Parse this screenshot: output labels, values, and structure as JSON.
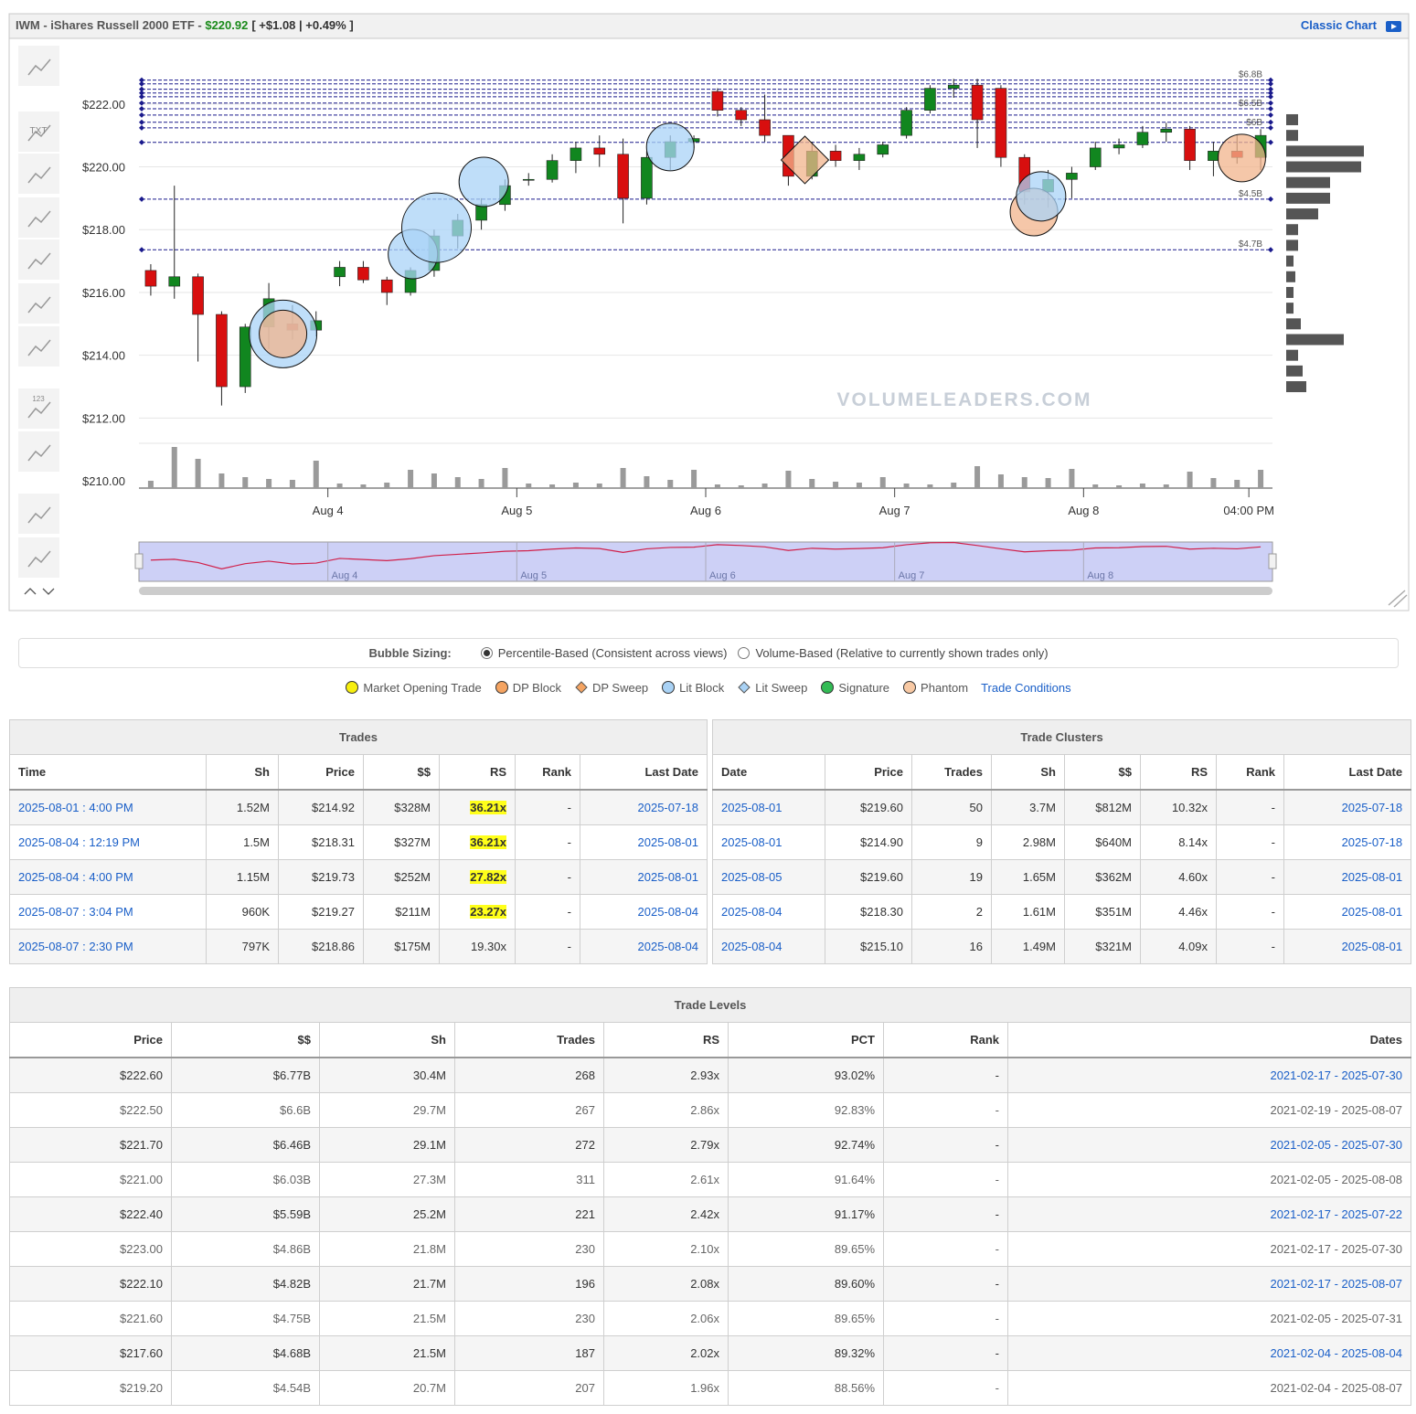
{
  "header": {
    "symbol": "IWM - iShares Russell 2000 ETF - ",
    "price": "$220.92",
    "change": "[ +$1.08 | +0.49% ]",
    "classic_chart": "Classic Chart"
  },
  "toolbar": {
    "labels": [
      "TXT",
      "123"
    ]
  },
  "chart_data": {
    "type": "candlestick",
    "watermark": "VOLUMELEADERS.COM",
    "x": [
      0,
      1,
      2,
      3,
      4,
      5,
      6,
      7,
      8,
      9,
      10,
      11,
      12,
      13,
      14,
      15,
      16,
      17,
      18,
      19,
      20,
      21,
      22,
      23,
      24,
      25,
      26,
      27,
      28,
      29,
      30,
      31,
      32,
      33,
      34,
      35,
      36,
      37,
      38,
      39,
      40,
      41,
      42,
      43,
      44,
      45,
      46,
      47
    ],
    "open": [
      216.7,
      216.2,
      216.5,
      215.3,
      213.0,
      214.9,
      215.0,
      214.8,
      216.5,
      216.8,
      216.4,
      216.0,
      216.7,
      217.8,
      218.3,
      218.8,
      219.6,
      219.6,
      220.2,
      220.6,
      220.4,
      219.0,
      220.3,
      220.8,
      222.4,
      221.8,
      221.5,
      221.0,
      219.7,
      220.5,
      220.2,
      220.4,
      221.0,
      221.8,
      222.5,
      222.6,
      222.5,
      220.3,
      219.2,
      219.6,
      220.0,
      220.6,
      220.7,
      221.1,
      221.2,
      220.2,
      220.5,
      220.3
    ],
    "high": [
      216.9,
      219.4,
      216.6,
      215.4,
      215.0,
      216.3,
      215.6,
      215.4,
      217.0,
      217.0,
      216.5,
      216.8,
      218.0,
      218.5,
      219.0,
      219.6,
      219.8,
      220.4,
      220.8,
      221.0,
      220.9,
      220.5,
      221.0,
      221.0,
      222.5,
      221.9,
      222.3,
      221.0,
      220.8,
      220.7,
      220.6,
      220.8,
      221.9,
      222.6,
      222.8,
      222.8,
      222.6,
      220.4,
      219.9,
      220.0,
      220.8,
      220.9,
      221.3,
      221.4,
      221.3,
      220.8,
      221.0,
      221.2
    ],
    "low": [
      215.9,
      215.8,
      213.8,
      212.4,
      212.8,
      214.2,
      214.5,
      214.6,
      216.2,
      216.3,
      215.6,
      215.9,
      216.5,
      217.4,
      218.0,
      218.6,
      219.4,
      219.5,
      219.8,
      220.0,
      218.2,
      218.8,
      219.9,
      220.6,
      221.6,
      221.3,
      220.8,
      219.4,
      219.6,
      220.0,
      219.9,
      220.3,
      220.9,
      221.7,
      222.2,
      220.6,
      220.0,
      218.8,
      218.7,
      219.0,
      219.9,
      220.4,
      220.6,
      220.8,
      219.9,
      219.7,
      220.1,
      219.9
    ],
    "close": [
      216.2,
      216.5,
      215.3,
      213.0,
      214.9,
      215.8,
      214.8,
      215.1,
      216.8,
      216.4,
      216.0,
      216.7,
      217.8,
      218.3,
      218.8,
      219.4,
      219.6,
      220.2,
      220.6,
      220.4,
      219.0,
      220.3,
      220.8,
      220.9,
      221.8,
      221.5,
      221.0,
      219.7,
      220.5,
      220.2,
      220.4,
      220.7,
      221.8,
      222.5,
      222.6,
      221.5,
      220.3,
      219.2,
      219.6,
      219.8,
      220.6,
      220.7,
      221.1,
      221.2,
      220.2,
      220.5,
      220.3,
      221.0
    ],
    "up_color": "#11861f",
    "down_color": "#d80f0f",
    "volume": [
      0.8,
      4.5,
      3.2,
      1.6,
      1.2,
      1.0,
      0.9,
      3.0,
      0.5,
      0.4,
      0.6,
      2.0,
      1.6,
      1.2,
      1.0,
      2.2,
      0.5,
      0.4,
      0.6,
      0.5,
      2.2,
      1.3,
      0.9,
      2.0,
      0.4,
      0.3,
      0.5,
      1.9,
      1.0,
      0.7,
      0.6,
      1.2,
      0.5,
      0.4,
      0.6,
      2.4,
      1.5,
      1.2,
      1.1,
      2.1,
      0.4,
      0.3,
      0.5,
      0.4,
      1.8,
      1.1,
      0.9,
      2.0
    ],
    "volume_color": "#9a9a9a",
    "ylim": [
      209.8,
      223.1
    ],
    "yticks": [
      {
        "value": 210,
        "label": "$210.00"
      },
      {
        "value": 212,
        "label": "$212.00"
      },
      {
        "value": 214,
        "label": "$214.00"
      },
      {
        "value": 216,
        "label": "$216.00"
      },
      {
        "value": 218,
        "label": "$218.00"
      },
      {
        "value": 220,
        "label": "$220.00"
      },
      {
        "value": 222,
        "label": "$222.00"
      }
    ],
    "xlim": [
      -0.5,
      47.5
    ],
    "xticks": [
      {
        "value": 7.5,
        "label": "Aug 4"
      },
      {
        "value": 15.5,
        "label": "Aug 5"
      },
      {
        "value": 23.5,
        "label": "Aug 6"
      },
      {
        "value": 31.5,
        "label": "Aug 7"
      },
      {
        "value": 39.5,
        "label": "Aug 8"
      },
      {
        "value": 46.5,
        "label": "04:00 PM"
      }
    ],
    "grid": true,
    "levels": [
      222.76,
      222.64,
      222.47,
      222.35,
      222.23,
      222.03,
      221.85,
      221.65,
      221.42,
      221.24,
      220.78,
      218.97,
      217.36
    ],
    "level_color": "#1a1a8c",
    "level_labels": [
      {
        "price": 222.76,
        "label": "$6.8B"
      },
      {
        "price": 221.85,
        "label": "$6.5B"
      },
      {
        "price": 221.24,
        "label": "$6B"
      },
      {
        "price": 218.97,
        "label": "$4.5B"
      },
      {
        "price": 217.36,
        "label": "$4.7B"
      }
    ],
    "bubbles": [
      {
        "x": 5.6,
        "y": 214.68,
        "size": 37,
        "color": "#aad3f7",
        "shape": "circle"
      },
      {
        "x": 5.6,
        "y": 214.68,
        "size": 26,
        "color": "#f2b48c",
        "shape": "circle"
      },
      {
        "x": 11.1,
        "y": 217.22,
        "size": 27,
        "color": "#aad3f7",
        "shape": "circle"
      },
      {
        "x": 12.1,
        "y": 218.06,
        "size": 38,
        "color": "#aad3f7",
        "shape": "circle"
      },
      {
        "x": 14.1,
        "y": 219.52,
        "size": 27,
        "color": "#aad3f7",
        "shape": "circle"
      },
      {
        "x": 22.0,
        "y": 220.63,
        "size": 26,
        "color": "#aad3f7",
        "shape": "circle"
      },
      {
        "x": 27.7,
        "y": 220.22,
        "size": 26,
        "color": "#f2b48c",
        "shape": "diamond"
      },
      {
        "x": 37.4,
        "y": 218.56,
        "size": 26,
        "color": "#f2b48c",
        "shape": "circle"
      },
      {
        "x": 37.7,
        "y": 219.06,
        "size": 27,
        "color": "#aad3f7",
        "shape": "circle"
      },
      {
        "x": 46.2,
        "y": 220.28,
        "size": 26,
        "color": "#f2b48c",
        "shape": "circle"
      }
    ],
    "volume_profile": {
      "prices": [
        221.5,
        221.0,
        220.5,
        220.0,
        219.5,
        219.0,
        218.5,
        218.0,
        217.5,
        217.0,
        216.5,
        216.0,
        215.5,
        215.0,
        214.5,
        214.0,
        213.5,
        213.0
      ],
      "values": [
        13,
        13,
        85,
        82,
        48,
        48,
        35,
        13,
        13,
        8,
        10,
        8,
        8,
        16,
        63,
        13,
        18,
        22
      ],
      "color": "#555555"
    }
  },
  "controls": {
    "label": "Bubble Sizing:",
    "options": [
      "Percentile-Based (Consistent across views)",
      "Volume-Based (Relative to currently shown trades only)"
    ],
    "selected": 0
  },
  "legend": {
    "items": [
      {
        "label": "Market Opening Trade",
        "color": "#f7ef0f",
        "shape": "circle"
      },
      {
        "label": "DP Block",
        "color": "#f5a462",
        "shape": "circle"
      },
      {
        "label": "DP Sweep",
        "color": "#f5a462",
        "shape": "diamond"
      },
      {
        "label": "Lit Block",
        "color": "#a9d2f5",
        "shape": "circle"
      },
      {
        "label": "Lit Sweep",
        "color": "#a9d2f5",
        "shape": "diamond"
      },
      {
        "label": "Signature",
        "color": "#33bb55",
        "shape": "circle"
      },
      {
        "label": "Phantom",
        "color": "#f8c9a4",
        "shape": "circle"
      }
    ],
    "link": "Trade Conditions"
  },
  "trades": {
    "title": "Trades",
    "columns": [
      "Time",
      "Sh",
      "Price",
      "$$",
      "RS",
      "Rank",
      "Last Date"
    ],
    "rows": [
      [
        "2025-08-01 : 4:00 PM",
        "1.52M",
        "$214.92",
        "$328M",
        "36.21x",
        "-",
        "2025-07-18"
      ],
      [
        "2025-08-04 : 12:19 PM",
        "1.5M",
        "$218.31",
        "$327M",
        "36.21x",
        "-",
        "2025-08-01"
      ],
      [
        "2025-08-04 : 4:00 PM",
        "1.15M",
        "$219.73",
        "$252M",
        "27.82x",
        "-",
        "2025-08-01"
      ],
      [
        "2025-08-07 : 3:04 PM",
        "960K",
        "$219.27",
        "$211M",
        "23.27x",
        "-",
        "2025-08-04"
      ],
      [
        "2025-08-07 : 2:30 PM",
        "797K",
        "$218.86",
        "$175M",
        "19.30x",
        "-",
        "2025-08-04"
      ]
    ],
    "link_columns": [
      0,
      6
    ],
    "highlight_rows": [
      0,
      1,
      2,
      3
    ],
    "highlight_column": 4
  },
  "clusters": {
    "title": "Trade Clusters",
    "columns": [
      "Date",
      "Price",
      "Trades",
      "Sh",
      "$$",
      "RS",
      "Rank",
      "Last Date"
    ],
    "rows": [
      [
        "2025-08-01",
        "$219.60",
        "50",
        "3.7M",
        "$812M",
        "10.32x",
        "-",
        "2025-07-18"
      ],
      [
        "2025-08-01",
        "$214.90",
        "9",
        "2.98M",
        "$640M",
        "8.14x",
        "-",
        "2025-07-18"
      ],
      [
        "2025-08-05",
        "$219.60",
        "19",
        "1.65M",
        "$362M",
        "4.60x",
        "-",
        "2025-08-01"
      ],
      [
        "2025-08-04",
        "$218.30",
        "2",
        "1.61M",
        "$351M",
        "4.46x",
        "-",
        "2025-08-01"
      ],
      [
        "2025-08-04",
        "$215.10",
        "16",
        "1.49M",
        "$321M",
        "4.09x",
        "-",
        "2025-08-01"
      ]
    ],
    "link_columns": [
      0,
      7
    ]
  },
  "levels_table": {
    "title": "Trade Levels",
    "columns": [
      "Price",
      "$$",
      "Sh",
      "Trades",
      "RS",
      "PCT",
      "Rank",
      "Dates"
    ],
    "rows": [
      [
        "$222.60",
        "$6.77B",
        "30.4M",
        "268",
        "2.93x",
        "93.02%",
        "-",
        "2021-02-17 - 2025-07-30"
      ],
      [
        "$222.50",
        "$6.6B",
        "29.7M",
        "267",
        "2.86x",
        "92.83%",
        "-",
        "2021-02-19 - 2025-08-07"
      ],
      [
        "$221.70",
        "$6.46B",
        "29.1M",
        "272",
        "2.79x",
        "92.74%",
        "-",
        "2021-02-05 - 2025-07-30"
      ],
      [
        "$221.00",
        "$6.03B",
        "27.3M",
        "311",
        "2.61x",
        "91.64%",
        "-",
        "2021-02-05 - 2025-08-08"
      ],
      [
        "$222.40",
        "$5.59B",
        "25.2M",
        "221",
        "2.42x",
        "91.17%",
        "-",
        "2021-02-17 - 2025-07-22"
      ],
      [
        "$223.00",
        "$4.86B",
        "21.8M",
        "230",
        "2.10x",
        "89.65%",
        "-",
        "2021-02-17 - 2025-07-30"
      ],
      [
        "$222.10",
        "$4.82B",
        "21.7M",
        "196",
        "2.08x",
        "89.60%",
        "-",
        "2021-02-17 - 2025-08-07"
      ],
      [
        "$221.60",
        "$4.75B",
        "21.5M",
        "230",
        "2.06x",
        "89.65%",
        "-",
        "2021-02-05 - 2025-07-31"
      ],
      [
        "$217.60",
        "$4.68B",
        "21.5M",
        "187",
        "2.02x",
        "89.32%",
        "-",
        "2021-02-04 - 2025-08-04"
      ],
      [
        "$219.20",
        "$4.54B",
        "20.7M",
        "207",
        "1.96x",
        "88.56%",
        "-",
        "2021-02-04 - 2025-08-07"
      ]
    ],
    "link_columns": [
      7
    ]
  }
}
